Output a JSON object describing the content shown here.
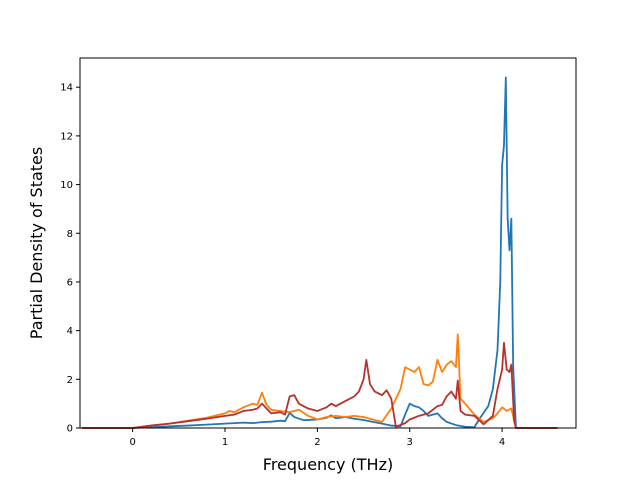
{
  "chart_data": {
    "type": "line",
    "title": "",
    "xlabel": "Frequency (THz)",
    "ylabel": "Partial Density of States",
    "xlim": [
      -0.57,
      4.8
    ],
    "ylim": [
      0,
      15.2
    ],
    "xticks": [
      0,
      1,
      2,
      3,
      4
    ],
    "yticks": [
      0,
      2,
      4,
      6,
      8,
      10,
      12,
      14
    ],
    "grid": false,
    "legend": "none",
    "series": [
      {
        "color": "#1f77b4",
        "points": [
          [
            -0.55,
            0.0
          ],
          [
            0.0,
            0.0
          ],
          [
            0.2,
            0.03
          ],
          [
            0.4,
            0.07
          ],
          [
            0.6,
            0.1
          ],
          [
            0.8,
            0.14
          ],
          [
            1.0,
            0.18
          ],
          [
            1.1,
            0.2
          ],
          [
            1.2,
            0.22
          ],
          [
            1.3,
            0.2
          ],
          [
            1.4,
            0.24
          ],
          [
            1.5,
            0.26
          ],
          [
            1.6,
            0.3
          ],
          [
            1.65,
            0.28
          ],
          [
            1.7,
            0.62
          ],
          [
            1.75,
            0.45
          ],
          [
            1.85,
            0.32
          ],
          [
            2.0,
            0.35
          ],
          [
            2.1,
            0.42
          ],
          [
            2.15,
            0.52
          ],
          [
            2.2,
            0.4
          ],
          [
            2.3,
            0.45
          ],
          [
            2.4,
            0.38
          ],
          [
            2.5,
            0.33
          ],
          [
            2.6,
            0.25
          ],
          [
            2.7,
            0.18
          ],
          [
            2.8,
            0.1
          ],
          [
            2.9,
            0.07
          ],
          [
            2.95,
            0.55
          ],
          [
            3.0,
            1.0
          ],
          [
            3.05,
            0.9
          ],
          [
            3.1,
            0.85
          ],
          [
            3.15,
            0.7
          ],
          [
            3.2,
            0.5
          ],
          [
            3.25,
            0.55
          ],
          [
            3.3,
            0.6
          ],
          [
            3.35,
            0.4
          ],
          [
            3.4,
            0.25
          ],
          [
            3.5,
            0.12
          ],
          [
            3.6,
            0.05
          ],
          [
            3.7,
            0.03
          ],
          [
            3.75,
            0.35
          ],
          [
            3.85,
            0.9
          ],
          [
            3.9,
            1.6
          ],
          [
            3.95,
            3.2
          ],
          [
            3.98,
            6.0
          ],
          [
            4.0,
            10.8
          ],
          [
            4.02,
            11.6
          ],
          [
            4.04,
            14.4
          ],
          [
            4.06,
            8.6
          ],
          [
            4.08,
            7.3
          ],
          [
            4.1,
            8.6
          ],
          [
            4.12,
            2.5
          ],
          [
            4.15,
            0.0
          ],
          [
            4.3,
            0.0
          ],
          [
            4.6,
            0.0
          ]
        ]
      },
      {
        "color": "#ff7f0e",
        "points": [
          [
            -0.55,
            0.0
          ],
          [
            0.0,
            0.0
          ],
          [
            0.2,
            0.1
          ],
          [
            0.4,
            0.18
          ],
          [
            0.6,
            0.3
          ],
          [
            0.8,
            0.42
          ],
          [
            1.0,
            0.6
          ],
          [
            1.05,
            0.7
          ],
          [
            1.1,
            0.65
          ],
          [
            1.2,
            0.85
          ],
          [
            1.3,
            1.0
          ],
          [
            1.35,
            0.95
          ],
          [
            1.4,
            1.45
          ],
          [
            1.45,
            0.95
          ],
          [
            1.5,
            0.75
          ],
          [
            1.6,
            0.7
          ],
          [
            1.7,
            0.65
          ],
          [
            1.8,
            0.75
          ],
          [
            1.9,
            0.5
          ],
          [
            2.0,
            0.35
          ],
          [
            2.1,
            0.45
          ],
          [
            2.2,
            0.5
          ],
          [
            2.3,
            0.45
          ],
          [
            2.4,
            0.5
          ],
          [
            2.5,
            0.45
          ],
          [
            2.6,
            0.35
          ],
          [
            2.7,
            0.25
          ],
          [
            2.8,
            0.8
          ],
          [
            2.9,
            1.6
          ],
          [
            2.95,
            2.5
          ],
          [
            3.05,
            2.3
          ],
          [
            3.1,
            2.5
          ],
          [
            3.15,
            1.8
          ],
          [
            3.2,
            1.75
          ],
          [
            3.25,
            1.9
          ],
          [
            3.3,
            2.8
          ],
          [
            3.35,
            2.3
          ],
          [
            3.4,
            2.6
          ],
          [
            3.45,
            2.75
          ],
          [
            3.5,
            2.5
          ],
          [
            3.52,
            3.85
          ],
          [
            3.55,
            1.2
          ],
          [
            3.6,
            1.0
          ],
          [
            3.7,
            0.55
          ],
          [
            3.8,
            0.25
          ],
          [
            3.9,
            0.4
          ],
          [
            3.95,
            0.6
          ],
          [
            4.0,
            0.85
          ],
          [
            4.05,
            0.7
          ],
          [
            4.1,
            0.8
          ],
          [
            4.15,
            0.0
          ],
          [
            4.3,
            0.0
          ],
          [
            4.6,
            0.0
          ]
        ]
      },
      {
        "color": "#b8312a",
        "points": [
          [
            -0.55,
            0.0
          ],
          [
            0.0,
            0.0
          ],
          [
            0.2,
            0.1
          ],
          [
            0.4,
            0.18
          ],
          [
            0.6,
            0.28
          ],
          [
            0.8,
            0.38
          ],
          [
            1.0,
            0.5
          ],
          [
            1.1,
            0.55
          ],
          [
            1.2,
            0.7
          ],
          [
            1.3,
            0.75
          ],
          [
            1.35,
            0.8
          ],
          [
            1.4,
            1.0
          ],
          [
            1.45,
            0.8
          ],
          [
            1.5,
            0.6
          ],
          [
            1.6,
            0.65
          ],
          [
            1.65,
            0.55
          ],
          [
            1.7,
            1.3
          ],
          [
            1.75,
            1.35
          ],
          [
            1.8,
            1.0
          ],
          [
            1.9,
            0.8
          ],
          [
            2.0,
            0.7
          ],
          [
            2.1,
            0.85
          ],
          [
            2.15,
            1.0
          ],
          [
            2.2,
            0.9
          ],
          [
            2.3,
            1.1
          ],
          [
            2.4,
            1.3
          ],
          [
            2.45,
            1.5
          ],
          [
            2.5,
            2.0
          ],
          [
            2.53,
            2.8
          ],
          [
            2.57,
            1.8
          ],
          [
            2.62,
            1.5
          ],
          [
            2.7,
            1.35
          ],
          [
            2.75,
            1.55
          ],
          [
            2.8,
            1.2
          ],
          [
            2.85,
            0.05
          ],
          [
            2.95,
            0.2
          ],
          [
            3.0,
            0.35
          ],
          [
            3.1,
            0.5
          ],
          [
            3.2,
            0.6
          ],
          [
            3.3,
            0.9
          ],
          [
            3.35,
            0.95
          ],
          [
            3.4,
            1.3
          ],
          [
            3.45,
            1.5
          ],
          [
            3.5,
            1.2
          ],
          [
            3.52,
            1.95
          ],
          [
            3.55,
            0.7
          ],
          [
            3.6,
            0.55
          ],
          [
            3.7,
            0.5
          ],
          [
            3.8,
            0.15
          ],
          [
            3.9,
            0.5
          ],
          [
            3.95,
            1.6
          ],
          [
            4.0,
            2.4
          ],
          [
            4.02,
            3.5
          ],
          [
            4.05,
            2.4
          ],
          [
            4.08,
            2.3
          ],
          [
            4.1,
            2.6
          ],
          [
            4.13,
            0.3
          ],
          [
            4.15,
            0.0
          ],
          [
            4.3,
            0.0
          ],
          [
            4.6,
            0.0
          ]
        ]
      }
    ]
  }
}
